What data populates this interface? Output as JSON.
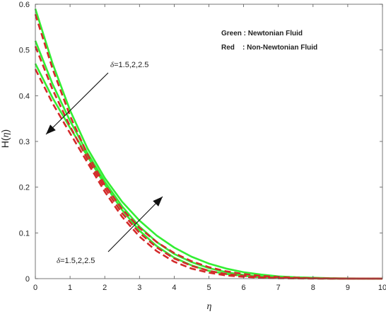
{
  "chart_data": {
    "type": "line",
    "title": "",
    "xlabel": "η",
    "ylabel_prefix": "H(",
    "ylabel_var": "η",
    "ylabel_suffix": ")",
    "xlim": [
      0,
      10
    ],
    "ylim": [
      0,
      0.6
    ],
    "xticks": [
      "0",
      "1",
      "2",
      "3",
      "4",
      "5",
      "6",
      "7",
      "8",
      "9",
      "10"
    ],
    "yticks": [
      "0",
      "0.1",
      "0.2",
      "0.3",
      "0.4",
      "0.5",
      "0.6"
    ],
    "grid": false,
    "legend_position": "top-right",
    "legend": [
      {
        "label": "Green : Newtonian Fluid",
        "color": "#33ee33"
      },
      {
        "label": "Red    : Non-Newtonian Fluid",
        "color": "#d42a2a"
      }
    ],
    "annotations": [
      {
        "symbol": "δ",
        "text": "=1.5,2,2.5",
        "direction": "decreasing near wall"
      },
      {
        "symbol": "δ",
        "text": "=1.5,2,2.5",
        "direction": "increasing away from wall"
      }
    ],
    "x": [
      0,
      0.5,
      1,
      1.5,
      2,
      2.5,
      3,
      3.5,
      4,
      4.5,
      5,
      5.5,
      6,
      6.5,
      7,
      7.5,
      8,
      8.5,
      9,
      9.5,
      10
    ],
    "series": [
      {
        "style": "solid",
        "color": "#33ee33",
        "values": [
          0.59,
          0.47,
          0.368,
          0.285,
          0.22,
          0.168,
          0.127,
          0.094,
          0.068,
          0.048,
          0.033,
          0.022,
          0.014,
          0.009,
          0.005,
          0.003,
          0.002,
          0.001,
          0.0005,
          0.0002,
          0.0
        ]
      },
      {
        "style": "solid",
        "color": "#33ee33",
        "values": [
          0.52,
          0.425,
          0.345,
          0.275,
          0.212,
          0.158,
          0.114,
          0.08,
          0.054,
          0.036,
          0.023,
          0.014,
          0.008,
          0.005,
          0.003,
          0.0015,
          0.0008,
          0.0004,
          0.0002,
          0.0001,
          0.0
        ]
      },
      {
        "style": "solid",
        "color": "#33ee33",
        "values": [
          0.47,
          0.395,
          0.33,
          0.268,
          0.206,
          0.15,
          0.105,
          0.071,
          0.046,
          0.029,
          0.017,
          0.01,
          0.006,
          0.003,
          0.0017,
          0.0009,
          0.0005,
          0.0002,
          0.0001,
          0.0,
          0.0
        ]
      },
      {
        "style": "dashed",
        "color": "#d42a2a",
        "values": [
          0.578,
          0.458,
          0.356,
          0.272,
          0.205,
          0.152,
          0.111,
          0.08,
          0.056,
          0.038,
          0.025,
          0.016,
          0.01,
          0.006,
          0.0035,
          0.002,
          0.001,
          0.0005,
          0.0002,
          0.0001,
          0.0
        ]
      },
      {
        "style": "dashed",
        "color": "#d42a2a",
        "values": [
          0.508,
          0.413,
          0.333,
          0.262,
          0.198,
          0.143,
          0.1,
          0.068,
          0.044,
          0.028,
          0.017,
          0.01,
          0.006,
          0.003,
          0.0017,
          0.0009,
          0.0004,
          0.0002,
          0.0001,
          0.0,
          0.0
        ]
      },
      {
        "style": "dashed",
        "color": "#d42a2a",
        "values": [
          0.458,
          0.383,
          0.318,
          0.254,
          0.19,
          0.135,
          0.092,
          0.06,
          0.037,
          0.022,
          0.013,
          0.007,
          0.004,
          0.002,
          0.001,
          0.0005,
          0.0002,
          0.0001,
          0.0,
          0.0,
          0.0
        ]
      }
    ]
  }
}
